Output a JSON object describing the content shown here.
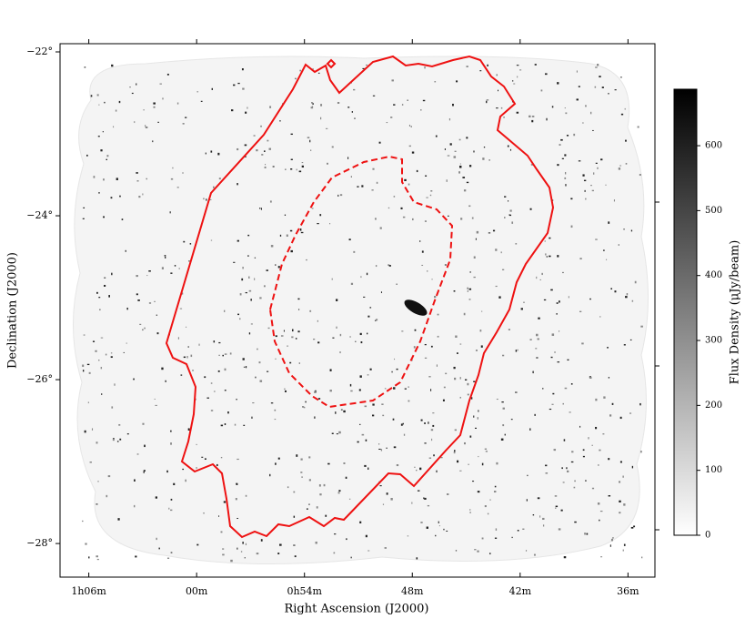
{
  "chart_data": {
    "type": "image",
    "xlabel": "Right Ascension (J2000)",
    "ylabel": "Declination (J2000)",
    "xlim": [
      67.6,
      34.5
    ],
    "xticks": [
      {
        "value": 66,
        "label": "1h06m"
      },
      {
        "value": 60,
        "label": "00m"
      },
      {
        "value": 54,
        "label": "0h54m"
      },
      {
        "value": 48,
        "label": "48m"
      },
      {
        "value": 42,
        "label": "42m"
      },
      {
        "value": 36,
        "label": "36m"
      }
    ],
    "ylim": [
      -28.41,
      -21.9
    ],
    "yticks": [
      {
        "value": -22,
        "label": "−22°"
      },
      {
        "value": -24,
        "label": "−24°"
      },
      {
        "value": -26,
        "label": "−26°"
      },
      {
        "value": -28,
        "label": "−28°"
      }
    ],
    "colorbar": {
      "label": "Flux Density (μJy/beam)",
      "lim": [
        0,
        687
      ],
      "ticks": [
        0,
        100,
        200,
        300,
        400,
        500,
        600
      ],
      "colors": [
        "#ffffff",
        "#000000"
      ]
    },
    "contour_color": "#ee1111"
  }
}
